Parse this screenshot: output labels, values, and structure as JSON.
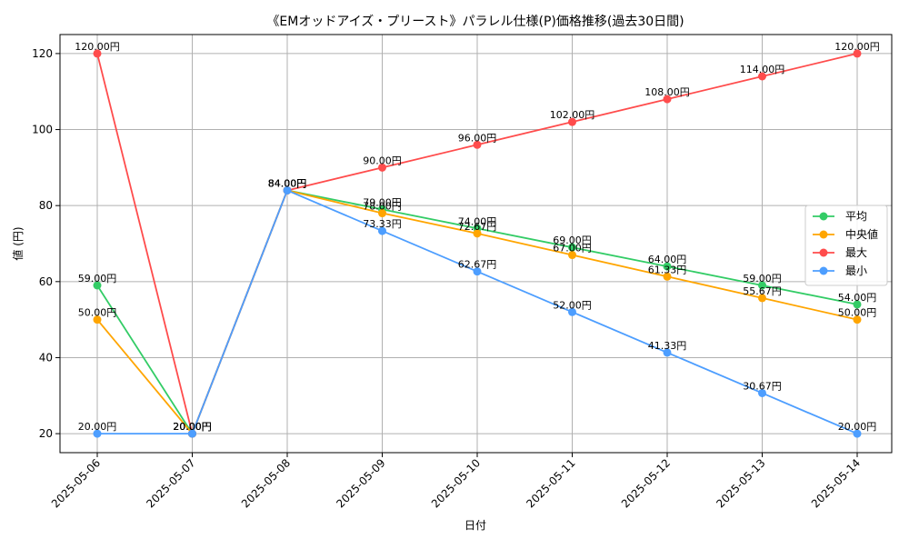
{
  "chart_data": {
    "type": "line",
    "title": "《EMオッドアイズ・プリースト》パラレル仕様(P)価格推移(過去30日間)",
    "xlabel": "日付",
    "ylabel": "値 (円)",
    "categories": [
      "2025-05-06",
      "2025-05-07",
      "2025-05-08",
      "2025-05-09",
      "2025-05-10",
      "2025-05-11",
      "2025-05-12",
      "2025-05-13",
      "2025-05-14"
    ],
    "ylim": [
      15,
      125
    ],
    "yticks": [
      20,
      40,
      60,
      80,
      100,
      120
    ],
    "grid": true,
    "legend_position": "right",
    "series": [
      {
        "name": "平均",
        "color": "#33cc66",
        "values": [
          59,
          20,
          84,
          79,
          74,
          69,
          64,
          59,
          54
        ],
        "labels": [
          "59.00円",
          "20.00円",
          "84.00円",
          "79.00円",
          "74.00円",
          "69.00円",
          "64.00円",
          "59.00円",
          "54.00円"
        ]
      },
      {
        "name": "中央値",
        "color": "#ffa500",
        "values": [
          50,
          20,
          84,
          78,
          72.67,
          67,
          61.33,
          55.67,
          50
        ],
        "labels": [
          "50.00円",
          "20.00円",
          "84.00円",
          "78.00円",
          "72.67円",
          "67.00円",
          "61.33円",
          "55.67円",
          "50.00円"
        ]
      },
      {
        "name": "最大",
        "color": "#ff4c4c",
        "values": [
          120,
          20,
          84,
          90,
          96,
          102,
          108,
          114,
          120
        ],
        "labels": [
          "120.00円",
          "20.00円",
          "84.00円",
          "90.00円",
          "96.00円",
          "102.00円",
          "108.00円",
          "114.00円",
          "120.00円"
        ]
      },
      {
        "name": "最小",
        "color": "#4d9eff",
        "values": [
          20,
          20,
          84,
          73.33,
          62.67,
          52,
          41.33,
          30.67,
          20
        ],
        "labels": [
          "20.00円",
          "20.00円",
          "84.00円",
          "73.33円",
          "62.67円",
          "52.00円",
          "41.33円",
          "30.67円",
          "20.00円"
        ]
      }
    ]
  }
}
